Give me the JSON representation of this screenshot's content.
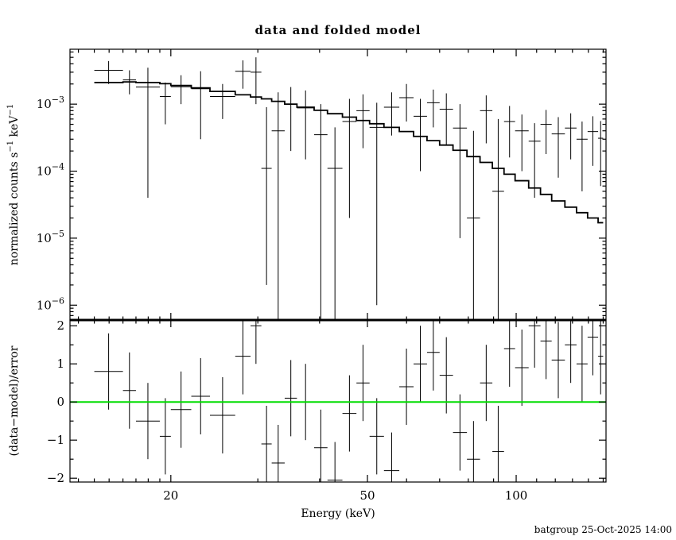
{
  "footer": {
    "timestamp": "batgroup 25-Oct-2025 14:00"
  },
  "chart_data": {
    "type": "scatter",
    "title": "data and folded model",
    "xlabel": "Energy (keV)",
    "ylabel_top": {
      "prefix": "normalized counts s",
      "sup1": "−1",
      "mid": " keV",
      "sup2": "−1"
    },
    "ylabel_bottom": "(data−model)/error",
    "zero_line_color": "#00dd00",
    "model_color": "#000000",
    "data_color": "#000000",
    "axes": {
      "x": {
        "scale": "log",
        "range": [
          12.5,
          152
        ],
        "major_ticks": [
          20,
          50,
          100
        ],
        "minor_ticks": [
          13,
          14,
          15,
          16,
          17,
          18,
          19,
          30,
          40,
          60,
          70,
          80,
          90,
          110,
          120,
          130,
          140,
          150
        ]
      },
      "y_top": {
        "scale": "log",
        "range": [
          6e-07,
          0.0066
        ],
        "major_exponents": [
          -6,
          -5,
          -4,
          -3
        ]
      },
      "y_bottom": {
        "scale": "linear",
        "range": [
          -2.1,
          2.15
        ],
        "major_ticks": [
          -2,
          -1,
          0,
          1,
          2
        ],
        "minor_step": 0.5
      }
    },
    "bins": [
      {
        "elo": 14.0,
        "ehi": 16.0,
        "model": 0.0021,
        "y": 0.0032,
        "ylo": 0.002,
        "yhi": 0.0044,
        "resid": 0.8,
        "resid_err": 1.0
      },
      {
        "elo": 16.0,
        "ehi": 17.0,
        "model": 0.00215,
        "y": 0.0023,
        "ylo": 0.0014,
        "yhi": 0.0032,
        "resid": 0.3,
        "resid_err": 1.0
      },
      {
        "elo": 17.0,
        "ehi": 19.0,
        "model": 0.0021,
        "y": 0.0018,
        "ylo": 4e-05,
        "yhi": 0.0035,
        "resid": -0.5,
        "resid_err": 1.0
      },
      {
        "elo": 19.0,
        "ehi": 20.0,
        "model": 0.00202,
        "y": 0.0013,
        "ylo": 0.0005,
        "yhi": 0.0021,
        "resid": -0.9,
        "resid_err": 1.0
      },
      {
        "elo": 20.0,
        "ehi": 22.0,
        "model": 0.0019,
        "y": 0.00182,
        "ylo": 0.001,
        "yhi": 0.0027,
        "resid": -0.2,
        "resid_err": 1.0
      },
      {
        "elo": 22.0,
        "ehi": 24.0,
        "model": 0.00175,
        "y": 0.0017,
        "ylo": 0.0003,
        "yhi": 0.0031,
        "resid": 0.15,
        "resid_err": 1.0
      },
      {
        "elo": 24.0,
        "ehi": 27.0,
        "model": 0.00155,
        "y": 0.0013,
        "ylo": 0.0006,
        "yhi": 0.002,
        "resid": -0.35,
        "resid_err": 1.0
      },
      {
        "elo": 27.0,
        "ehi": 29.0,
        "model": 0.00138,
        "y": 0.0031,
        "ylo": 0.0017,
        "yhi": 0.0045,
        "resid": 1.2,
        "resid_err": 1.0
      },
      {
        "elo": 29.0,
        "ehi": 30.5,
        "model": 0.00128,
        "y": 0.003,
        "ylo": 0.001,
        "yhi": 0.005,
        "resid": 2.0,
        "resid_err": 1.0
      },
      {
        "elo": 30.5,
        "ehi": 32.0,
        "model": 0.0012,
        "y": 0.00011,
        "ylo": 2e-06,
        "yhi": 0.0009,
        "resid": -1.1,
        "resid_err": 1.0
      },
      {
        "elo": 32.0,
        "ehi": 34.0,
        "model": 0.0011,
        "y": 0.0004,
        "ylo": 0,
        "yhi": 0.0015,
        "resid": -1.6,
        "resid_err": 1.0
      },
      {
        "elo": 34.0,
        "ehi": 36.0,
        "model": 0.001,
        "y": 0.001,
        "ylo": 0.0002,
        "yhi": 0.0018,
        "resid": 0.1,
        "resid_err": 1.0
      },
      {
        "elo": 36.0,
        "ehi": 39.0,
        "model": 0.0009,
        "y": 0.00088,
        "ylo": 0.00015,
        "yhi": 0.0016,
        "resid": 0.0,
        "resid_err": 1.0
      },
      {
        "elo": 39.0,
        "ehi": 41.5,
        "model": 0.00081,
        "y": 0.00035,
        "ylo": 0,
        "yhi": 0.001,
        "resid": -1.2,
        "resid_err": 1.0
      },
      {
        "elo": 41.5,
        "ehi": 44.5,
        "model": 0.00072,
        "y": 0.00011,
        "ylo": 0,
        "yhi": 0.00045,
        "resid": -2.05,
        "resid_err": 1.0
      },
      {
        "elo": 44.5,
        "ehi": 47.5,
        "model": 0.00064,
        "y": 0.00055,
        "ylo": 2e-05,
        "yhi": 0.0012,
        "resid": -0.3,
        "resid_err": 1.0
      },
      {
        "elo": 47.5,
        "ehi": 50.5,
        "model": 0.00057,
        "y": 0.0008,
        "ylo": 0.00022,
        "yhi": 0.0014,
        "resid": 0.5,
        "resid_err": 1.0
      },
      {
        "elo": 50.5,
        "ehi": 54.0,
        "model": 0.00051,
        "y": 0.00045,
        "ylo": 1e-06,
        "yhi": 0.00105,
        "resid": -0.9,
        "resid_err": 1.0
      },
      {
        "elo": 54.0,
        "ehi": 58.0,
        "model": 0.00045,
        "y": 0.0009,
        "ylo": 0.00034,
        "yhi": 0.0015,
        "resid": -1.8,
        "resid_err": 1.0
      },
      {
        "elo": 58.0,
        "ehi": 62.0,
        "model": 0.00039,
        "y": 0.00125,
        "ylo": 0.00055,
        "yhi": 0.002,
        "resid": 0.4,
        "resid_err": 1.0
      },
      {
        "elo": 62.0,
        "ehi": 66.0,
        "model": 0.00033,
        "y": 0.00066,
        "ylo": 0.0001,
        "yhi": 0.0012,
        "resid": 1.0,
        "resid_err": 1.0
      },
      {
        "elo": 66.0,
        "ehi": 70.0,
        "model": 0.000285,
        "y": 0.00105,
        "ylo": 0.00045,
        "yhi": 0.00165,
        "resid": 1.3,
        "resid_err": 1.0
      },
      {
        "elo": 70.0,
        "ehi": 74.5,
        "model": 0.000245,
        "y": 0.00084,
        "ylo": 0.00024,
        "yhi": 0.00145,
        "resid": 0.7,
        "resid_err": 1.0
      },
      {
        "elo": 74.5,
        "ehi": 79.5,
        "model": 0.000205,
        "y": 0.00044,
        "ylo": 1e-05,
        "yhi": 0.001,
        "resid": -0.8,
        "resid_err": 1.0
      },
      {
        "elo": 79.5,
        "ehi": 84.5,
        "model": 0.000165,
        "y": 2e-05,
        "ylo": 0,
        "yhi": 0.0004,
        "resid": -1.5,
        "resid_err": 1.0
      },
      {
        "elo": 84.5,
        "ehi": 89.5,
        "model": 0.000135,
        "y": 0.0008,
        "ylo": 0.00026,
        "yhi": 0.00135,
        "resid": 0.5,
        "resid_err": 1.0
      },
      {
        "elo": 89.5,
        "ehi": 94.5,
        "model": 0.00011,
        "y": 5e-05,
        "ylo": 0,
        "yhi": 0.0006,
        "resid": -1.3,
        "resid_err": 1.2
      },
      {
        "elo": 94.5,
        "ehi": 99.5,
        "model": 9e-05,
        "y": 0.00055,
        "ylo": 0.00016,
        "yhi": 0.00094,
        "resid": 1.4,
        "resid_err": 1.0
      },
      {
        "elo": 99.5,
        "ehi": 106.0,
        "model": 7.2e-05,
        "y": 0.0004,
        "ylo": 0.0001,
        "yhi": 0.0007,
        "resid": 0.9,
        "resid_err": 1.0
      },
      {
        "elo": 106.0,
        "ehi": 112.0,
        "model": 5.6e-05,
        "y": 0.00028,
        "ylo": 4e-05,
        "yhi": 0.00052,
        "resid": 2.0,
        "resid_err": 1.1
      },
      {
        "elo": 112.0,
        "ehi": 118.0,
        "model": 4.5e-05,
        "y": 0.0005,
        "ylo": 0.00018,
        "yhi": 0.00082,
        "resid": 1.6,
        "resid_err": 1.0
      },
      {
        "elo": 118.0,
        "ehi": 125.5,
        "model": 3.6e-05,
        "y": 0.00036,
        "ylo": 8e-05,
        "yhi": 0.00064,
        "resid": 1.1,
        "resid_err": 1.0
      },
      {
        "elo": 125.5,
        "ehi": 132.5,
        "model": 2.9e-05,
        "y": 0.00044,
        "ylo": 0.00015,
        "yhi": 0.00073,
        "resid": 1.5,
        "resid_err": 1.0
      },
      {
        "elo": 132.5,
        "ehi": 139.5,
        "model": 2.4e-05,
        "y": 0.0003,
        "ylo": 5e-05,
        "yhi": 0.00055,
        "resid": 1.0,
        "resid_err": 1.0
      },
      {
        "elo": 139.5,
        "ehi": 146.5,
        "model": 2e-05,
        "y": 0.00039,
        "ylo": 0.00012,
        "yhi": 0.00066,
        "resid": 1.7,
        "resid_err": 1.0
      },
      {
        "elo": 146.5,
        "ehi": 150.0,
        "model": 1.7e-05,
        "y": 0.00031,
        "ylo": 6e-05,
        "yhi": 0.00056,
        "resid": 1.2,
        "resid_err": 1.0
      }
    ]
  }
}
